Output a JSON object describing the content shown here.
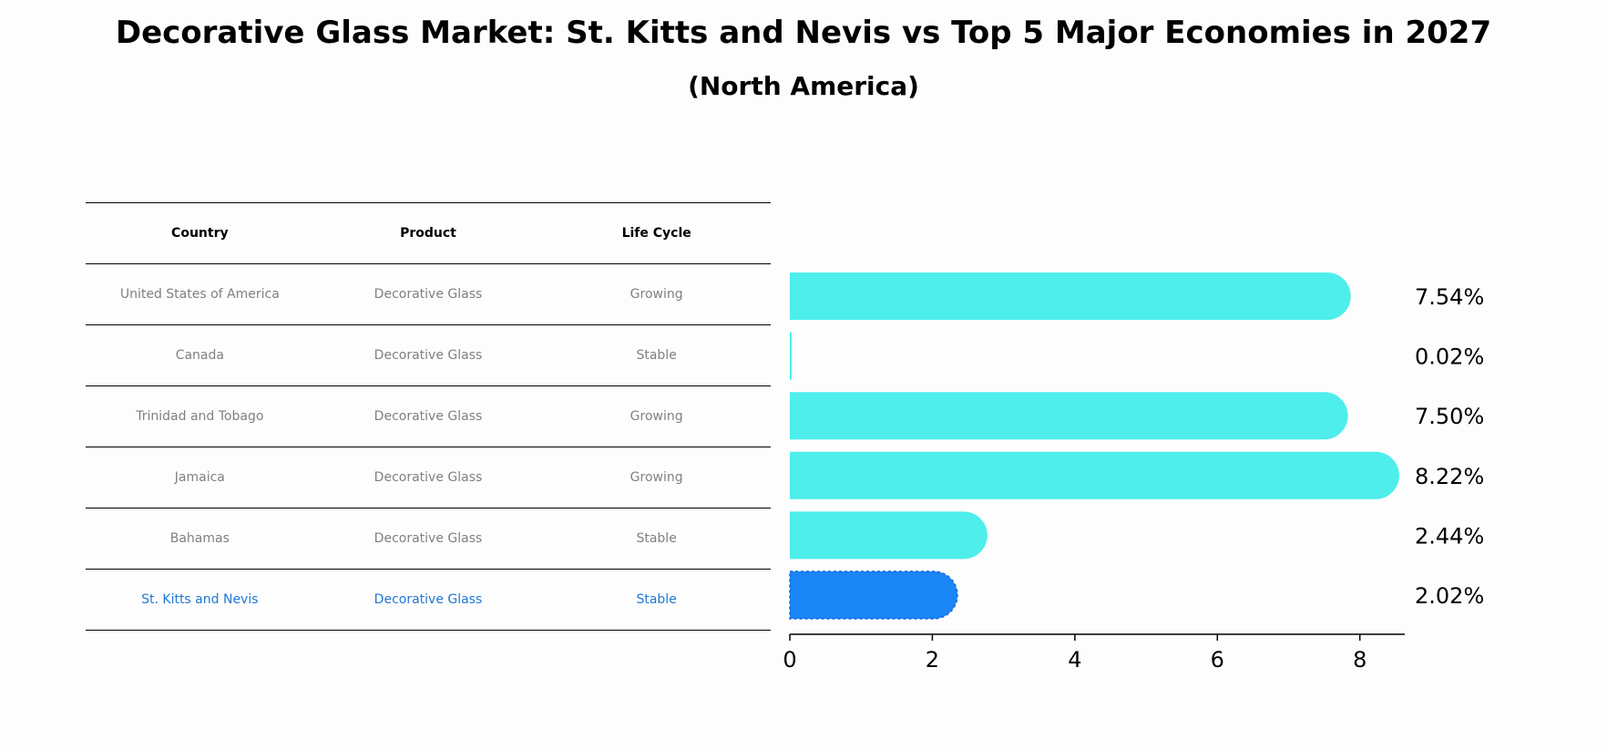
{
  "title": "Decorative Glass Market: St. Kitts and Nevis vs Top 5 Major Economies in 2027",
  "subtitle": "(North America)",
  "table": {
    "headers": [
      "Country",
      "Product",
      "Life Cycle"
    ],
    "rows": [
      {
        "country": "United States of America",
        "product": "Decorative Glass",
        "life_cycle": "Growing"
      },
      {
        "country": "Canada",
        "product": "Decorative Glass",
        "life_cycle": "Stable"
      },
      {
        "country": "Trinidad and Tobago",
        "product": "Decorative Glass",
        "life_cycle": "Growing"
      },
      {
        "country": "Jamaica",
        "product": "Decorative Glass",
        "life_cycle": "Growing"
      },
      {
        "country": "Bahamas",
        "product": "Decorative Glass",
        "life_cycle": "Stable"
      },
      {
        "country": "St. Kitts and Nevis",
        "product": "Decorative Glass",
        "life_cycle": "Stable"
      }
    ]
  },
  "colors": {
    "bar": "#4deeeb",
    "highlight_bar": "#1a85f5",
    "highlight_text": "#1f77d4",
    "muted_text": "#808080"
  },
  "chart_data": {
    "type": "bar",
    "orientation": "horizontal",
    "categories": [
      "United States of America",
      "Canada",
      "Trinidad and Tobago",
      "Jamaica",
      "Bahamas",
      "St. Kitts and Nevis"
    ],
    "values": [
      7.54,
      0.02,
      7.5,
      8.22,
      2.44,
      2.02
    ],
    "value_labels": [
      "7.54%",
      "0.02%",
      "7.50%",
      "8.22%",
      "2.44%",
      "2.02%"
    ],
    "highlight_category": "St. Kitts and Nevis",
    "xlim": [
      0,
      8.63
    ],
    "xticks": [
      0,
      2,
      4,
      6,
      8
    ],
    "xtick_labels": [
      "0",
      "2",
      "4",
      "6",
      "8"
    ],
    "xlabel": "",
    "ylabel": "",
    "grid": false
  }
}
